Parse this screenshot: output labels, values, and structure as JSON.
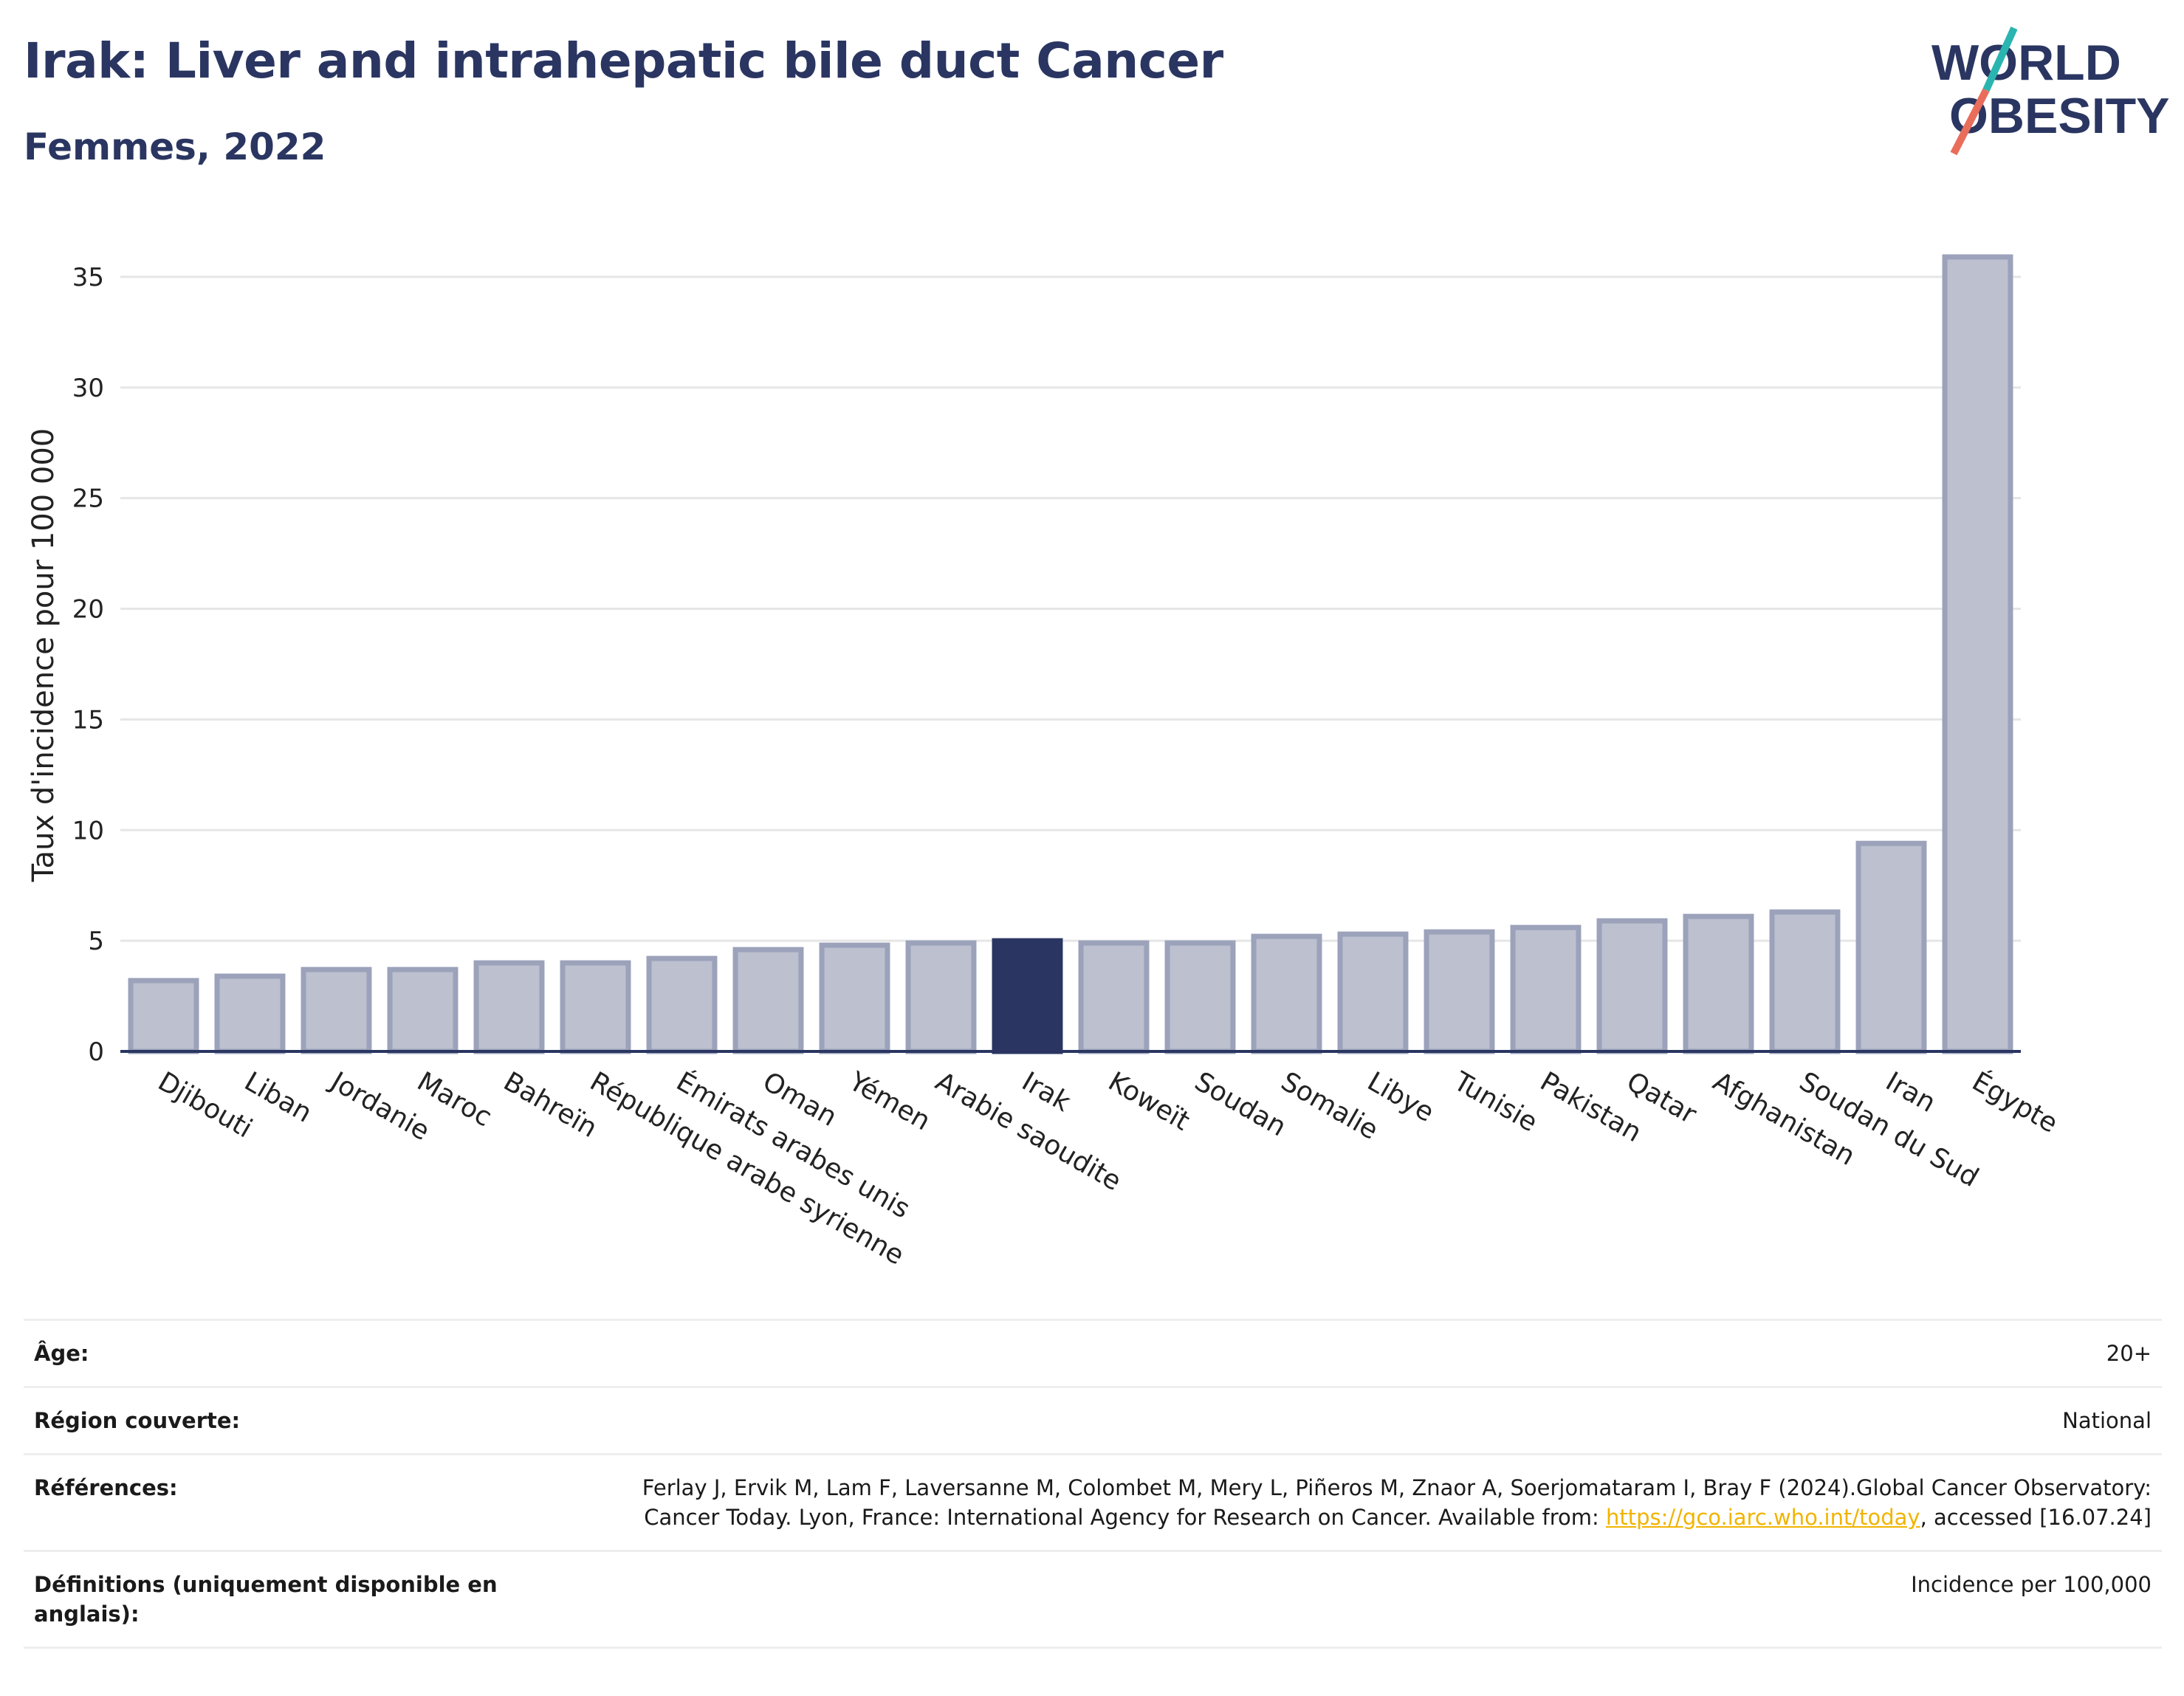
{
  "header": {
    "title": "Irak: Liver and intrahepatic bile duct Cancer",
    "subtitle": "Femmes, 2022",
    "logo_line1": "WORLD",
    "logo_line2": "OBESITY"
  },
  "colors": {
    "primary": "#2a3661",
    "bar_default": "#bcc0cf",
    "bar_border": "#9ba2ba",
    "bar_highlight": "#2a3661",
    "logo_teal": "#2bb5b0",
    "logo_coral": "#e96d5b",
    "link": "#f0b400"
  },
  "chart_data": {
    "type": "bar",
    "title": "Irak: Liver and intrahepatic bile duct Cancer",
    "subtitle": "Femmes, 2022",
    "xlabel": "",
    "ylabel": "Taux d'incidence pour 100 000",
    "ylim": [
      0,
      36.5
    ],
    "yticks": [
      0,
      5,
      10,
      15,
      20,
      25,
      30,
      35
    ],
    "grid": true,
    "highlight": "Irak",
    "categories": [
      "Djibouti",
      "Liban",
      "Jordanie",
      "Maroc",
      "Bahreïn",
      "République arabe syrienne",
      "Émirats arabes unis",
      "Oman",
      "Yémen",
      "Arabie saoudite",
      "Irak",
      "Koweït",
      "Soudan",
      "Somalie",
      "Libye",
      "Tunisie",
      "Pakistan",
      "Qatar",
      "Afghanistan",
      "Soudan du Sud",
      "Iran",
      "Égypte"
    ],
    "values": [
      3.2,
      3.4,
      3.7,
      3.7,
      4.0,
      4.0,
      4.2,
      4.6,
      4.8,
      4.9,
      5.0,
      4.9,
      4.9,
      5.2,
      5.3,
      5.4,
      5.6,
      5.9,
      6.1,
      6.3,
      9.4,
      35.9
    ]
  },
  "meta": {
    "rows": [
      {
        "label": "Âge:",
        "value": "20+"
      },
      {
        "label": "Région couverte:",
        "value": "National"
      },
      {
        "label": "Références:",
        "value_pre": "Ferlay J, Ervik M, Lam F, Laversanne M, Colombet M, Mery L, Piñeros M, Znaor A, Soerjomataram I, Bray F (2024).Global Cancer Observatory: Cancer Today. Lyon, France: International Agency for Research on Cancer. Available from: ",
        "link": "https://gco.iarc.who.int/today",
        "value_post": ", accessed [16.07.24]"
      },
      {
        "label": "Définitions (uniquement disponible en anglais):",
        "value": "Incidence per 100,000"
      }
    ]
  }
}
